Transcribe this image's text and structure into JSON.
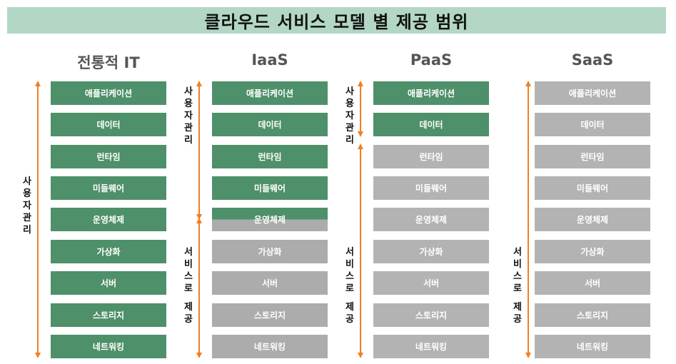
{
  "title": "클라우드 서비스 모델 별 제공 범위",
  "colors": {
    "managed": "#4e9069",
    "provided": "#b3b3b3",
    "arrow": "#f07f22",
    "title_bg": "#b3d7c4"
  },
  "layers": [
    "애플리케이션",
    "데이터",
    "런타임",
    "미들웨어",
    "운영체제",
    "가상화",
    "서버",
    "스토리지",
    "네트워킹"
  ],
  "columns": [
    {
      "name": "전통적 IT",
      "managed_count": 9
    },
    {
      "name": "IaaS",
      "managed_count": 4.5
    },
    {
      "name": "PaaS",
      "managed_count": 2
    },
    {
      "name": "SaaS",
      "managed_count": 0
    }
  ],
  "labels": {
    "user_managed": [
      "사",
      "용",
      "자",
      "관",
      "리"
    ],
    "service_provided": [
      "서",
      "비",
      "스",
      "로",
      "",
      "제",
      "공"
    ]
  }
}
